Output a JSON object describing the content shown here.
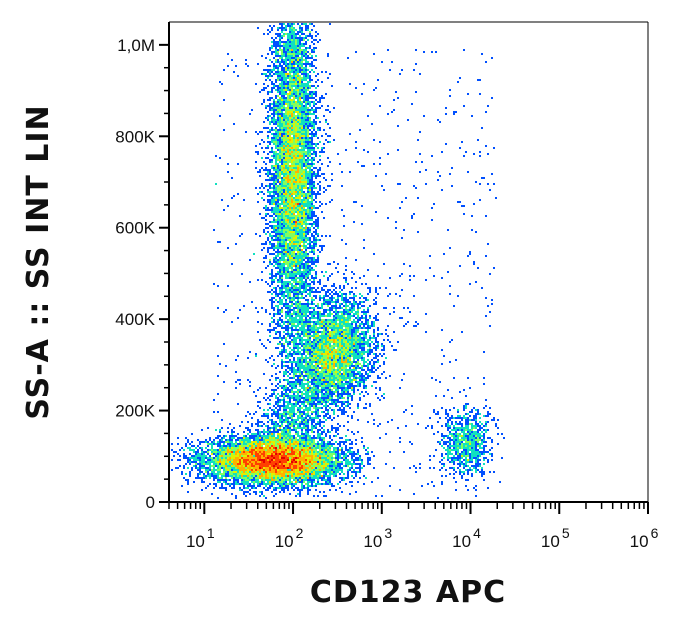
{
  "chart_data": {
    "type": "scatter",
    "subtype": "flow-cytometry-density-dot-plot",
    "xlabel": "CD123 APC",
    "ylabel": "SS-A :: SS INT LIN",
    "x_scale": "log",
    "y_scale": "linear",
    "xlim": [
      4,
      1000000
    ],
    "ylim": [
      0,
      1050000
    ],
    "x_ticks": [
      {
        "value": 10,
        "base": "10",
        "exp": "1"
      },
      {
        "value": 100,
        "base": "10",
        "exp": "2"
      },
      {
        "value": 1000,
        "base": "10",
        "exp": "3"
      },
      {
        "value": 10000,
        "base": "10",
        "exp": "4"
      },
      {
        "value": 100000,
        "base": "10",
        "exp": "5"
      },
      {
        "value": 1000000,
        "base": "10",
        "exp": "6"
      }
    ],
    "y_ticks": [
      {
        "value": 0,
        "label": "0"
      },
      {
        "value": 200000,
        "label": "200K"
      },
      {
        "value": 400000,
        "label": "400K"
      },
      {
        "value": 600000,
        "label": "600K"
      },
      {
        "value": 800000,
        "label": "800K"
      },
      {
        "value": 1000000,
        "label": "1,0M"
      }
    ],
    "grid": false,
    "legend": "none",
    "colormap": [
      "#0000d0",
      "#0050ff",
      "#00b4ff",
      "#10e0c0",
      "#80ff60",
      "#e0f000",
      "#ffb000",
      "#ff4000",
      "#e00000"
    ],
    "populations": [
      {
        "center_x": 100,
        "center_y": 720000,
        "spread_log_x": 0.13,
        "spread_y": 190000,
        "density": "high"
      },
      {
        "center_x": 60,
        "center_y": 90000,
        "spread_log_x": 0.38,
        "spread_y": 25000,
        "density": "highest"
      },
      {
        "center_x": 300,
        "center_y": 340000,
        "spread_log_x": 0.22,
        "spread_y": 60000,
        "density": "medium"
      },
      {
        "center_x": 9000,
        "center_y": 130000,
        "spread_log_x": 0.14,
        "spread_y": 35000,
        "density": "low"
      }
    ]
  }
}
